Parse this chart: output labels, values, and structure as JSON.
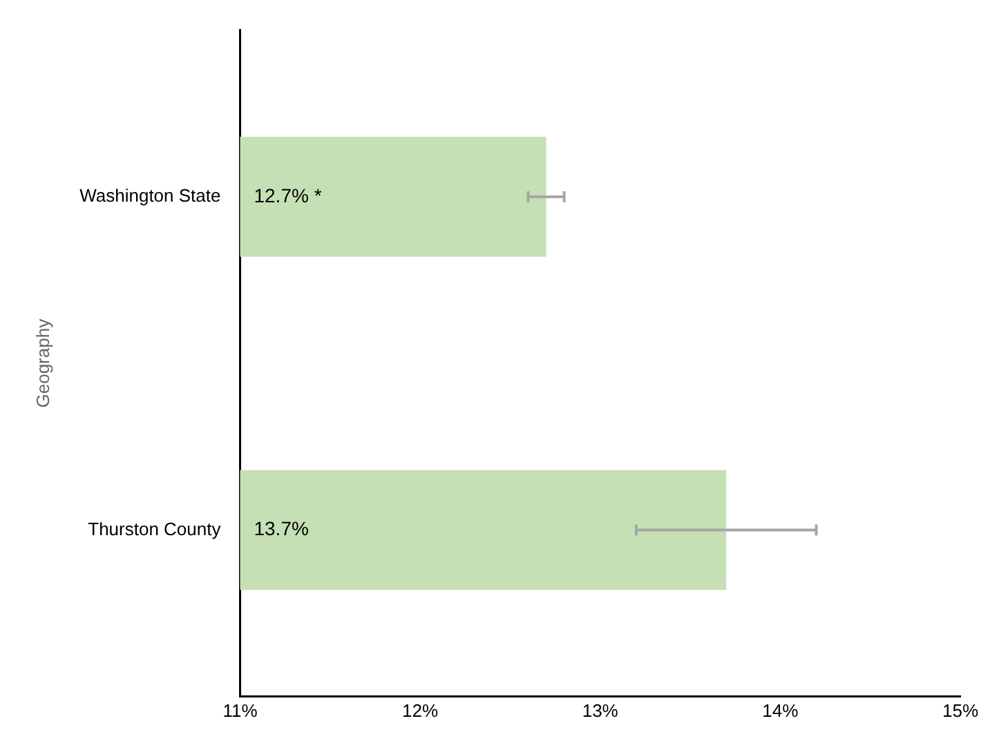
{
  "chart_data": {
    "type": "bar",
    "orientation": "horizontal",
    "ylabel": "Geography",
    "categories": [
      "Washington State",
      "Thurston County"
    ],
    "values": [
      12.7,
      13.7
    ],
    "value_labels": [
      "12.7% *",
      "13.7%"
    ],
    "errors": [
      [
        12.6,
        12.8
      ],
      [
        13.2,
        14.2
      ]
    ],
    "color": "#c5e0b4",
    "xlim": [
      11,
      15
    ],
    "xticks": [
      {
        "value": 11,
        "label": "11%"
      },
      {
        "value": 12,
        "label": "12%"
      },
      {
        "value": 13,
        "label": "13%"
      },
      {
        "value": 14,
        "label": "14%"
      },
      {
        "value": 15,
        "label": "15%"
      }
    ],
    "grid": false,
    "legend": false
  }
}
